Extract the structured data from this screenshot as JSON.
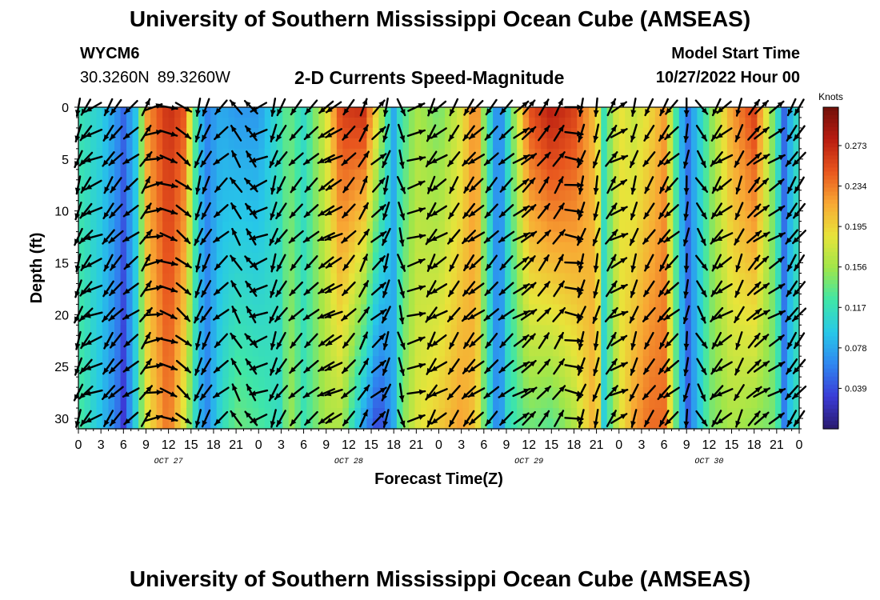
{
  "header": {
    "title": "University of Southern Mississippi Ocean Cube (AMSEAS)",
    "station": "WYCM6",
    "latitude": "30.3260N",
    "longitude": "89.3260W",
    "model_start_label": "Model Start Time",
    "model_start_value": "10/27/2022 Hour 00"
  },
  "footer": {
    "title": "University of Southern Mississippi Ocean Cube (AMSEAS)"
  },
  "chart_data": {
    "type": "heatmap",
    "title": "2-D Currents Speed-Magnitude",
    "xlabel": "Forecast Time(Z)",
    "ylabel": "Depth (ft)",
    "x_ticks": [
      "0",
      "3",
      "6",
      "9",
      "12",
      "15",
      "18",
      "21",
      "0",
      "3",
      "6",
      "9",
      "12",
      "15",
      "18",
      "21",
      "0",
      "3",
      "6",
      "9",
      "12",
      "15",
      "18",
      "21",
      "0",
      "3",
      "6",
      "9",
      "12",
      "15",
      "18",
      "21",
      "0"
    ],
    "x_range_hours": [
      0,
      96
    ],
    "date_labels": [
      {
        "label": "OCT 27",
        "hour": 12
      },
      {
        "label": "OCT 28",
        "hour": 36
      },
      {
        "label": "OCT 29",
        "hour": 60
      },
      {
        "label": "OCT 30",
        "hour": 84
      }
    ],
    "y_ticks": [
      0,
      5,
      10,
      15,
      20,
      25,
      30
    ],
    "ylim": [
      0,
      31
    ],
    "y_inverted": true,
    "colorbar": {
      "unit": "Knots",
      "ticks": [
        "0.273",
        "0.234",
        "0.195",
        "0.156",
        "0.117",
        "0.078",
        "0.039"
      ],
      "range": [
        0.0,
        0.31
      ],
      "colors": [
        "#2a1a6e",
        "#3b3bd6",
        "#2f86f0",
        "#27c8e8",
        "#3fe6a8",
        "#9fe64a",
        "#e8e43a",
        "#f8a834",
        "#e8561e",
        "#b81c10",
        "#701008"
      ]
    },
    "speed_profile": {
      "hours": [
        0,
        3,
        5,
        6,
        8,
        9,
        12,
        14,
        16,
        17,
        19,
        21,
        24,
        27,
        28,
        30,
        33,
        35,
        38,
        40,
        42,
        43,
        45,
        48,
        51,
        53,
        54,
        56,
        57,
        60,
        63,
        66,
        69,
        70,
        72,
        74,
        76,
        78,
        80,
        81,
        84,
        87,
        90,
        93,
        94,
        95,
        96
      ],
      "surface": [
        0.12,
        0.1,
        0.07,
        0.05,
        0.1,
        0.22,
        0.27,
        0.25,
        0.1,
        0.06,
        0.08,
        0.07,
        0.07,
        0.12,
        0.14,
        0.11,
        0.18,
        0.26,
        0.27,
        0.18,
        0.08,
        0.12,
        0.16,
        0.14,
        0.18,
        0.24,
        0.15,
        0.05,
        0.1,
        0.25,
        0.28,
        0.26,
        0.2,
        0.12,
        0.19,
        0.17,
        0.19,
        0.22,
        0.1,
        0.05,
        0.14,
        0.22,
        0.26,
        0.12,
        0.05,
        0.09,
        0.12
      ],
      "bottom": [
        0.13,
        0.09,
        0.06,
        0.03,
        0.12,
        0.18,
        0.24,
        0.18,
        0.09,
        0.06,
        0.11,
        0.14,
        0.13,
        0.11,
        0.16,
        0.12,
        0.16,
        0.16,
        0.07,
        0.03,
        0.08,
        0.14,
        0.18,
        0.2,
        0.22,
        0.2,
        0.14,
        0.05,
        0.11,
        0.14,
        0.13,
        0.16,
        0.22,
        0.1,
        0.18,
        0.22,
        0.24,
        0.24,
        0.11,
        0.04,
        0.14,
        0.16,
        0.15,
        0.14,
        0.06,
        0.1,
        0.12
      ]
    },
    "vector_rows_depth_ft": [
      0,
      2.5,
      5,
      7.5,
      10,
      12.5,
      15,
      17.5,
      20,
      22.5,
      25,
      27.5,
      30
    ],
    "vector_columns_hours": [
      0,
      1,
      2,
      4,
      5,
      7,
      9,
      10,
      12,
      14,
      16,
      17,
      19,
      21,
      23,
      24,
      26,
      27,
      29,
      31,
      33,
      34,
      36,
      38,
      40,
      41,
      43,
      45,
      47,
      48,
      50,
      52,
      53,
      55,
      57,
      59,
      60,
      62,
      64,
      66,
      67,
      69,
      71,
      72,
      74,
      76,
      78,
      79,
      81,
      83,
      85,
      86,
      88,
      90,
      91,
      93,
      95,
      96
    ],
    "vector_direction_deg": [
      200,
      220,
      250,
      215,
      225,
      235,
      35,
      80,
      110,
      130,
      200,
      210,
      230,
      330,
      325,
      250,
      200,
      215,
      225,
      230,
      240,
      245,
      225,
      30,
      50,
      200,
      165,
      75,
      210,
      240,
      215,
      220,
      235,
      225,
      230,
      60,
      50,
      40,
      35,
      100,
      200,
      195,
      35,
      65,
      200,
      215,
      215,
      230,
      190,
      150,
      215,
      240,
      205,
      45,
      55,
      60,
      215,
      220
    ]
  }
}
